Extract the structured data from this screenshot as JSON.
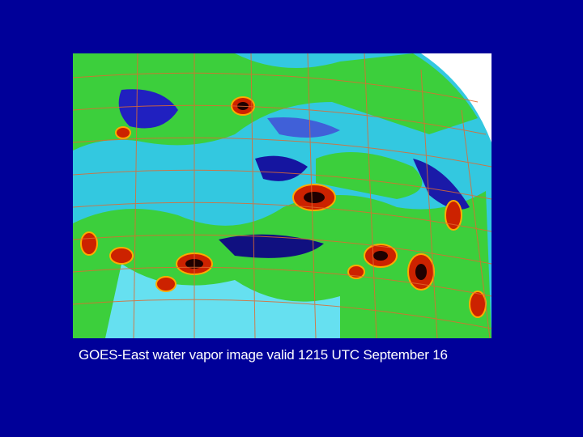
{
  "caption": "GOES-East water vapor image valid 1215 UTC September 16"
}
